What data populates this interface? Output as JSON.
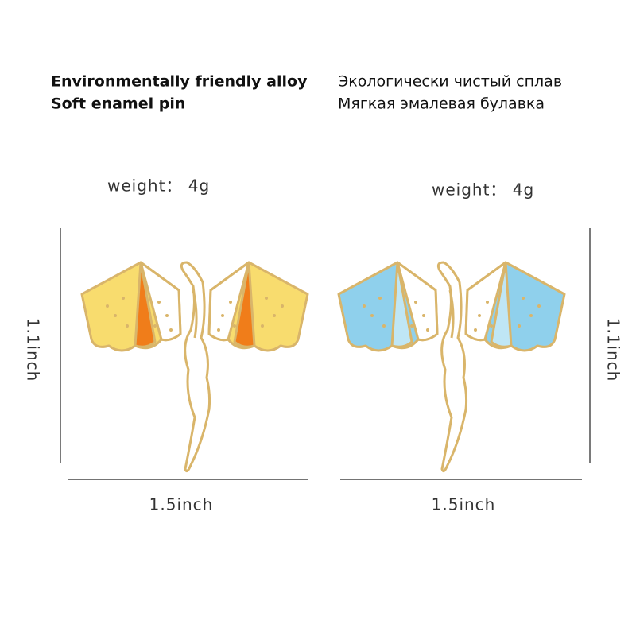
{
  "header": {
    "english": [
      "Environmentally friendly alloy",
      "Soft enamel pin"
    ],
    "russian": [
      "Экологически чистый сплав",
      "Мягкая эмалевая булавка"
    ]
  },
  "products": [
    {
      "weight": "weight： 4g",
      "height": "1.1inch",
      "width": "1.5inch"
    },
    {
      "weight": "weight： 4g",
      "height": "1.1inch",
      "width": "1.5inch"
    }
  ]
}
